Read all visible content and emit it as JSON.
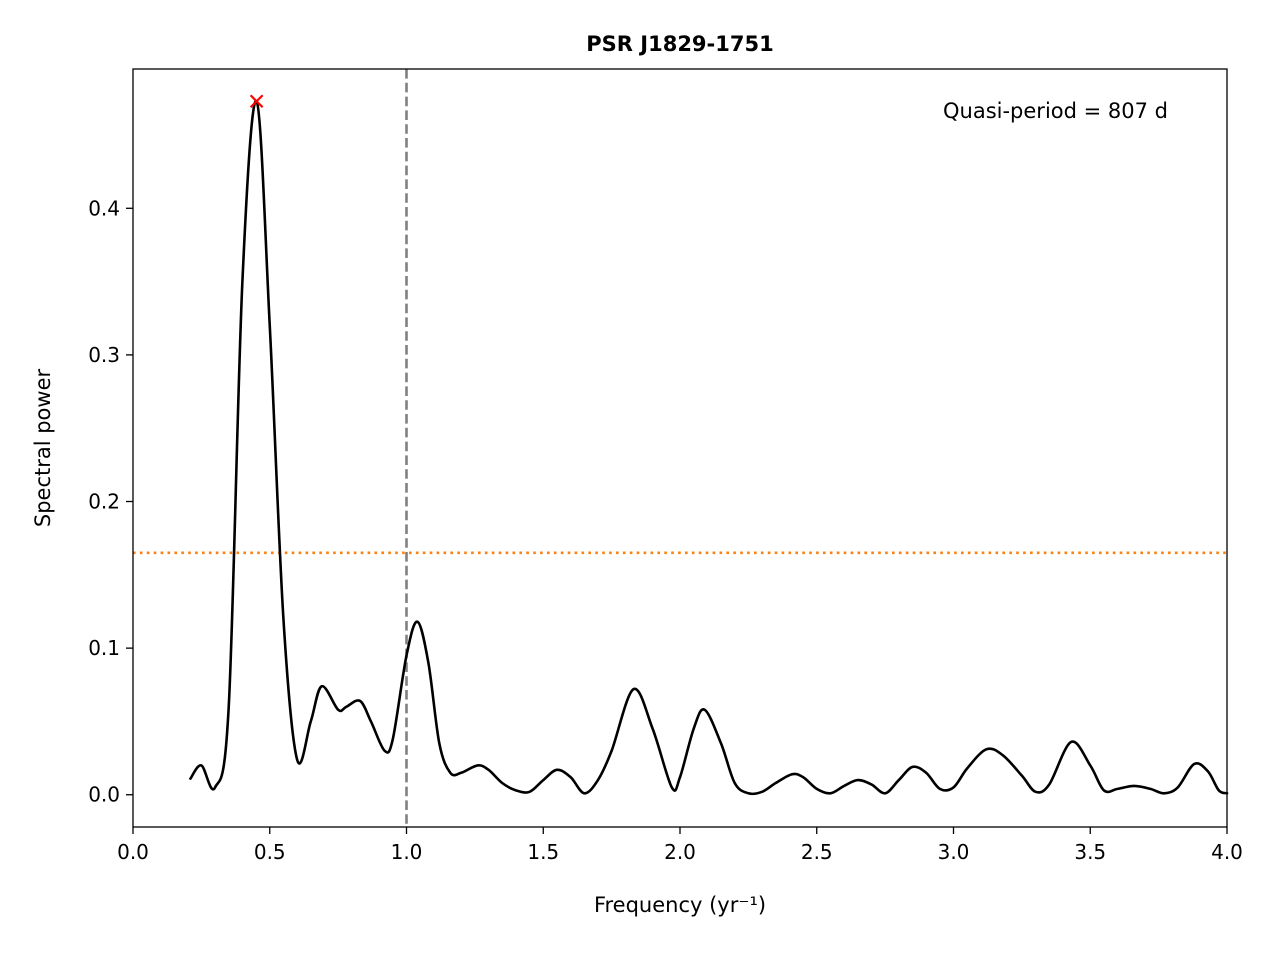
{
  "chart_data": {
    "type": "line",
    "title": "PSR J1829-1751",
    "xlabel": "Frequency (yr⁻¹)",
    "ylabel": "Spectral power",
    "xlim": [
      0.0,
      4.0
    ],
    "ylim": [
      -0.022,
      0.495
    ],
    "xticks": [
      0.0,
      0.5,
      1.0,
      1.5,
      2.0,
      2.5,
      3.0,
      3.5,
      4.0
    ],
    "xtick_labels": [
      "0.0",
      "0.5",
      "1.0",
      "1.5",
      "2.0",
      "2.5",
      "3.0",
      "3.5",
      "4.0"
    ],
    "yticks": [
      0.0,
      0.1,
      0.2,
      0.3,
      0.4
    ],
    "ytick_labels": [
      "0.0",
      "0.1",
      "0.2",
      "0.3",
      "0.4"
    ],
    "annotation": "Quasi-period = 807 d",
    "colors": {
      "series": "#000000",
      "peak_marker": "#ff0000",
      "reference_line": "#808080",
      "threshold_line": "#ff7f0e"
    },
    "peak": {
      "x": 0.452,
      "y": 0.473
    },
    "reference_vline": {
      "x": 1.0
    },
    "threshold_hline": {
      "y": 0.165
    },
    "series": [
      {
        "x": [
          0.21,
          0.25,
          0.3,
          0.35,
          0.4,
          0.452,
          0.5,
          0.55,
          0.6,
          0.65,
          0.69,
          0.75,
          0.78,
          0.83,
          0.87,
          0.92,
          0.95,
          1.0,
          1.04,
          1.08,
          1.12,
          1.16,
          1.2,
          1.26,
          1.3,
          1.35,
          1.4,
          1.45,
          1.5,
          1.55,
          1.6,
          1.65,
          1.7,
          1.75,
          1.83,
          1.9,
          1.97,
          2.0,
          2.05,
          2.09,
          2.15,
          2.2,
          2.25,
          2.3,
          2.35,
          2.41,
          2.45,
          2.5,
          2.55,
          2.6,
          2.65,
          2.7,
          2.75,
          2.8,
          2.85,
          2.9,
          2.95,
          3.0,
          3.05,
          3.12,
          3.18,
          3.25,
          3.3,
          3.35,
          3.43,
          3.5,
          3.55,
          3.6,
          3.66,
          3.72,
          3.77,
          3.82,
          3.88,
          3.93,
          3.97,
          4.0
        ],
        "values": [
          0.011,
          0.02,
          0.005,
          0.06,
          0.35,
          0.473,
          0.32,
          0.12,
          0.024,
          0.05,
          0.074,
          0.058,
          0.06,
          0.064,
          0.05,
          0.03,
          0.038,
          0.095,
          0.118,
          0.09,
          0.035,
          0.015,
          0.015,
          0.02,
          0.017,
          0.008,
          0.003,
          0.002,
          0.01,
          0.017,
          0.012,
          0.001,
          0.01,
          0.03,
          0.072,
          0.045,
          0.005,
          0.012,
          0.045,
          0.058,
          0.035,
          0.008,
          0.001,
          0.002,
          0.008,
          0.014,
          0.012,
          0.004,
          0.001,
          0.006,
          0.01,
          0.007,
          0.001,
          0.01,
          0.019,
          0.015,
          0.004,
          0.005,
          0.018,
          0.031,
          0.027,
          0.013,
          0.002,
          0.007,
          0.036,
          0.02,
          0.003,
          0.004,
          0.006,
          0.004,
          0.001,
          0.005,
          0.021,
          0.016,
          0.003,
          0.001
        ]
      }
    ]
  }
}
